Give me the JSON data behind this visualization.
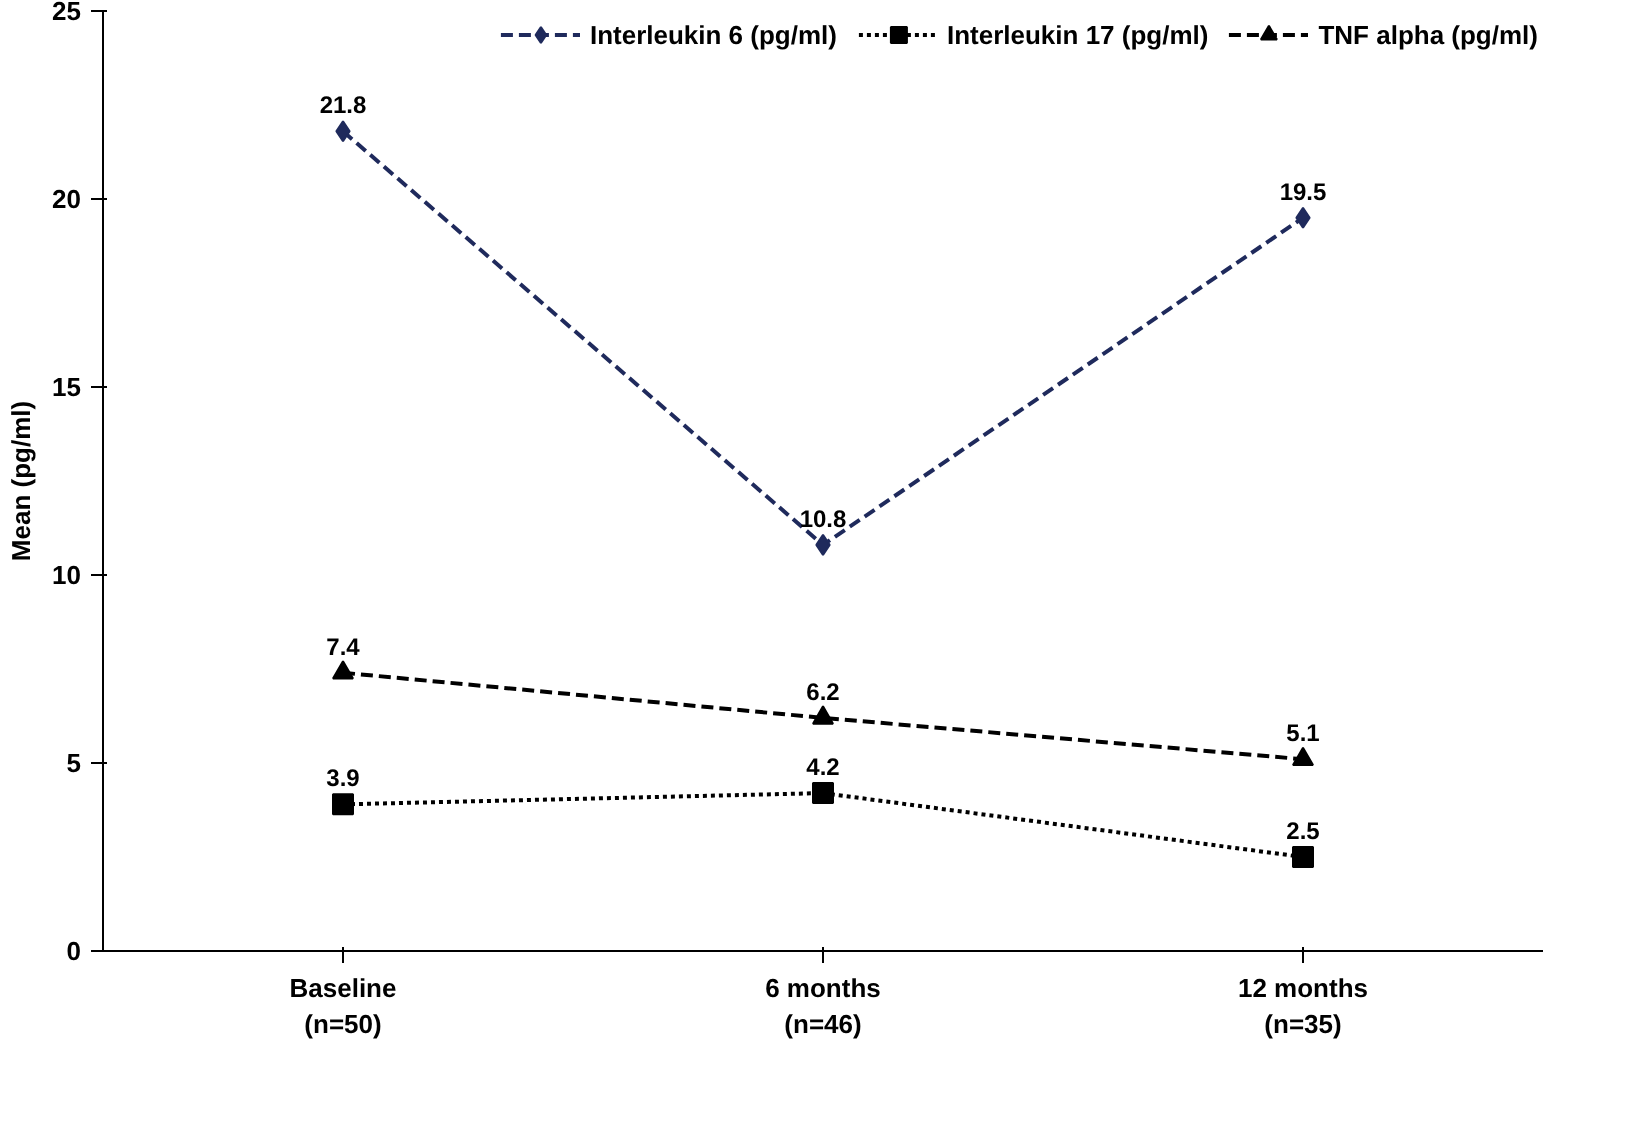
{
  "chart_data": {
    "type": "line",
    "ylabel": "Mean (pg/ml)",
    "categories": [
      "Baseline\n(n=50)",
      "6 months\n(n=46)",
      "12 months\n(n=35)"
    ],
    "series": [
      {
        "name": "Interleukin 6 (pg/ml)",
        "color": "#1f2a5c",
        "values": [
          21.8,
          10.8,
          19.5
        ],
        "marker": "diamond",
        "line_style": "dashed"
      },
      {
        "name": "Interleukin 17 (pg/ml)",
        "color": "#000000",
        "values": [
          3.9,
          4.2,
          2.5
        ],
        "marker": "square",
        "line_style": "dotted"
      },
      {
        "name": "TNF alpha (pg/ml)",
        "color": "#000000",
        "values": [
          7.4,
          6.2,
          5.1
        ],
        "marker": "triangle",
        "line_style": "dashed"
      }
    ],
    "ylim": [
      0,
      25
    ],
    "yticks": [
      0,
      5,
      10,
      15,
      20,
      25
    ],
    "grid": false,
    "legend": "top",
    "data_labels": true
  }
}
